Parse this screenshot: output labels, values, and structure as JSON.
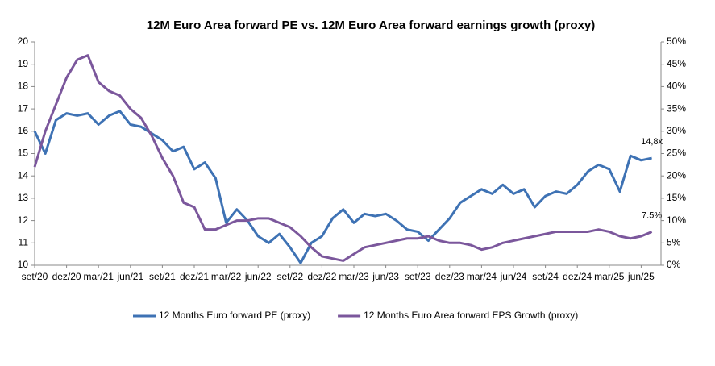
{
  "chart_data": {
    "type": "line",
    "title": "12M Euro Area forward PE vs. 12M Euro Area forward earnings growth (proxy)",
    "categories": [
      "set/20",
      null,
      null,
      "dez/20",
      null,
      null,
      "mar/21",
      null,
      null,
      "jun/21",
      null,
      null,
      "set/21",
      null,
      null,
      "dez/21",
      null,
      null,
      "mar/22",
      null,
      null,
      "jun/22",
      null,
      null,
      "set/22",
      null,
      null,
      "dez/22",
      null,
      null,
      "mar/23",
      null,
      null,
      "jun/23",
      null,
      null,
      "set/23",
      null,
      null,
      "dez/23",
      null,
      null,
      "mar/24",
      null,
      null,
      "jun/24",
      null,
      null,
      "set/24",
      null,
      null,
      "dez/24",
      null,
      null,
      "mar/25",
      null,
      null,
      "jun/25",
      null
    ],
    "series": [
      {
        "name": "12 Months Euro forward PE (proxy)",
        "color": "#3e72b4",
        "values": [
          16.0,
          15.0,
          16.5,
          16.8,
          16.7,
          16.8,
          16.3,
          16.7,
          16.9,
          16.3,
          16.2,
          15.9,
          15.6,
          15.1,
          15.3,
          14.3,
          14.6,
          13.9,
          11.9,
          12.5,
          12.0,
          11.3,
          11.0,
          11.4,
          10.8,
          10.1,
          11.0,
          11.3,
          12.1,
          12.5,
          11.9,
          12.3,
          12.2,
          12.3,
          12.0,
          11.6,
          11.5,
          11.1,
          11.6,
          12.1,
          12.8,
          13.1,
          13.4,
          13.2,
          13.6,
          13.2,
          13.4,
          12.6,
          13.1,
          13.3,
          13.2,
          13.6,
          14.2,
          14.5,
          14.3,
          13.3,
          14.9,
          14.7,
          14.8
        ]
      },
      {
        "name": "12 Months Euro Area forward EPS Growth (proxy)",
        "color": "#7b579c",
        "axis": "y2",
        "values": [
          22,
          30,
          36,
          42,
          46,
          47,
          41,
          39,
          38,
          35,
          33,
          29,
          24,
          20,
          14,
          13,
          8,
          8,
          9,
          10,
          10,
          10.5,
          10.5,
          9.5,
          8.5,
          6.5,
          4,
          2,
          1.5,
          1,
          2.5,
          4,
          4.5,
          5,
          5.5,
          6,
          6,
          6.5,
          5.5,
          5,
          5,
          4.5,
          3.5,
          4,
          5,
          5.5,
          6,
          6.5,
          7,
          7.5,
          7.5,
          7.5,
          7.5,
          8,
          7.5,
          6.5,
          6,
          6.5,
          7.5
        ]
      }
    ],
    "annotations": [
      "14,8x",
      "7.5%"
    ],
    "ylim": [
      10,
      20
    ],
    "yticks": [
      10,
      11,
      12,
      13,
      14,
      15,
      16,
      17,
      18,
      19,
      20
    ],
    "y2lim": [
      0,
      50
    ],
    "y2ticks": [
      {
        "value": 0,
        "label": "0%"
      },
      {
        "value": 5,
        "label": "5%"
      },
      {
        "value": 10,
        "label": "10%"
      },
      {
        "value": 15,
        "label": "15%"
      },
      {
        "value": 20,
        "label": "20%"
      },
      {
        "value": 25,
        "label": "25%"
      },
      {
        "value": 30,
        "label": "30%"
      },
      {
        "value": 35,
        "label": "35%"
      },
      {
        "value": 40,
        "label": "40%"
      },
      {
        "value": 45,
        "label": "45%"
      },
      {
        "value": 50,
        "label": "50%"
      }
    ]
  }
}
